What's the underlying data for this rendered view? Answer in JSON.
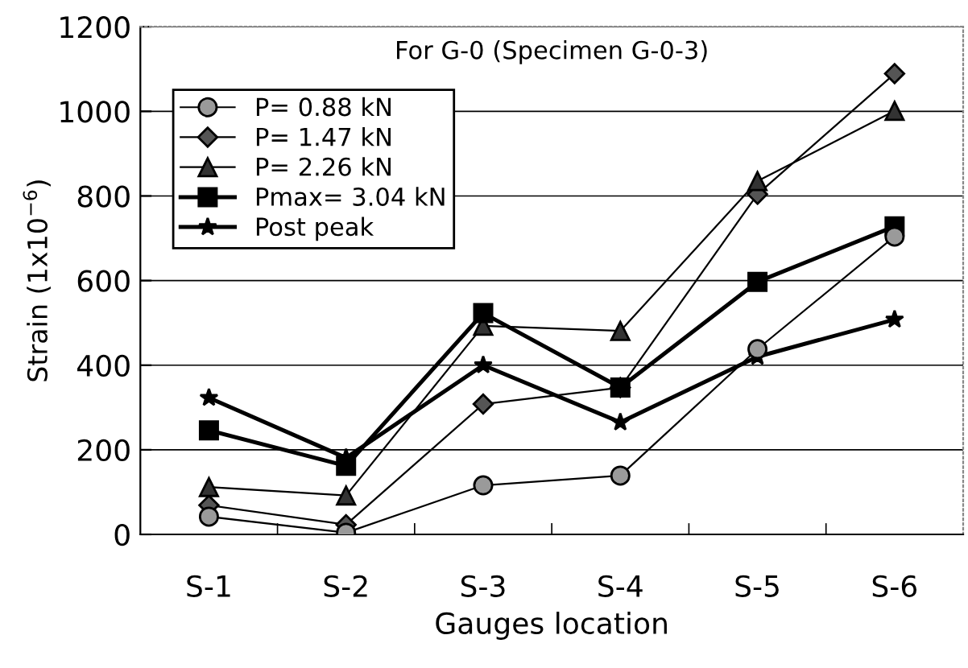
{
  "chart_data": {
    "type": "line",
    "title": "For G-0 (Specimen G-0-3)",
    "xlabel": "Gauges location",
    "ylabel": "Strain (1x10$^{−6}$)",
    "categories": [
      "S-1",
      "S-2",
      "S-3",
      "S-4",
      "S-5",
      "S-6"
    ],
    "series": [
      {
        "name": "P= 0.88 kN",
        "color": "#000000",
        "marker": "circle",
        "values": [
          42,
          4,
          116,
          139,
          438,
          704
        ]
      },
      {
        "name": "P= 1.47 kN",
        "color": "#000000",
        "marker": "diamond",
        "values": [
          69,
          23,
          308,
          347,
          804,
          1089
        ]
      },
      {
        "name": "P= 2.26 kN",
        "color": "#000000",
        "marker": "triangle",
        "values": [
          112,
          92,
          493,
          481,
          835,
          1001
        ]
      },
      {
        "name": "Pmax= 3.04 kN",
        "color": "#000000",
        "marker": "square",
        "values": [
          246,
          162,
          523,
          347,
          597,
          728
        ]
      },
      {
        "name": "Post peak",
        "color": "#000000",
        "marker": "star",
        "values": [
          323,
          181,
          400,
          265,
          420,
          508
        ]
      }
    ],
    "ylim": [
      0,
      1200
    ],
    "yticks": [
      0,
      200,
      400,
      600,
      800,
      1000,
      1200
    ],
    "grid": "y",
    "legend": "top left",
    "line_style": "solid"
  }
}
